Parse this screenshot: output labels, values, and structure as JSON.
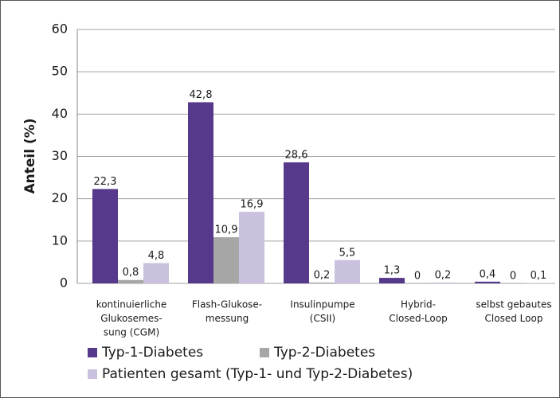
{
  "chart_data": {
    "type": "bar",
    "ylabel": "Anteil (%)",
    "categories": [
      [
        "kontinuierliche",
        "Glukosemes-",
        "sung (CGM)"
      ],
      [
        "Flash-Glukose-",
        "messung"
      ],
      [
        "Insulinpumpe",
        "(CSII)"
      ],
      [
        "Hybrid-",
        "Closed-Loop"
      ],
      [
        "selbst gebautes",
        "Closed Loop"
      ]
    ],
    "series": [
      {
        "name": "Typ-1-Diabetes",
        "color": "#56398a",
        "values": [
          22.3,
          42.8,
          28.6,
          1.3,
          0.4
        ],
        "value_labels": [
          "22,3",
          "42,8",
          "28,6",
          "1,3",
          "0,4"
        ]
      },
      {
        "name": "Typ-2-Diabetes",
        "color": "#a6a6a6",
        "values": [
          0.8,
          10.9,
          0.2,
          0,
          0
        ],
        "value_labels": [
          "0,8",
          "10,9",
          "0,2",
          "0",
          "0"
        ]
      },
      {
        "name": "Patienten gesamt (Typ-1- und Typ-2-Diabetes)",
        "color": "#c9c1dd",
        "values": [
          4.8,
          16.9,
          5.5,
          0.2,
          0.1
        ],
        "value_labels": [
          "4,8",
          "16,9",
          "5,5",
          "0,2",
          "0,1"
        ]
      }
    ],
    "ylim": [
      0,
      60
    ],
    "yticks": [
      0,
      10,
      20,
      30,
      40,
      50,
      60
    ],
    "grid": true
  }
}
